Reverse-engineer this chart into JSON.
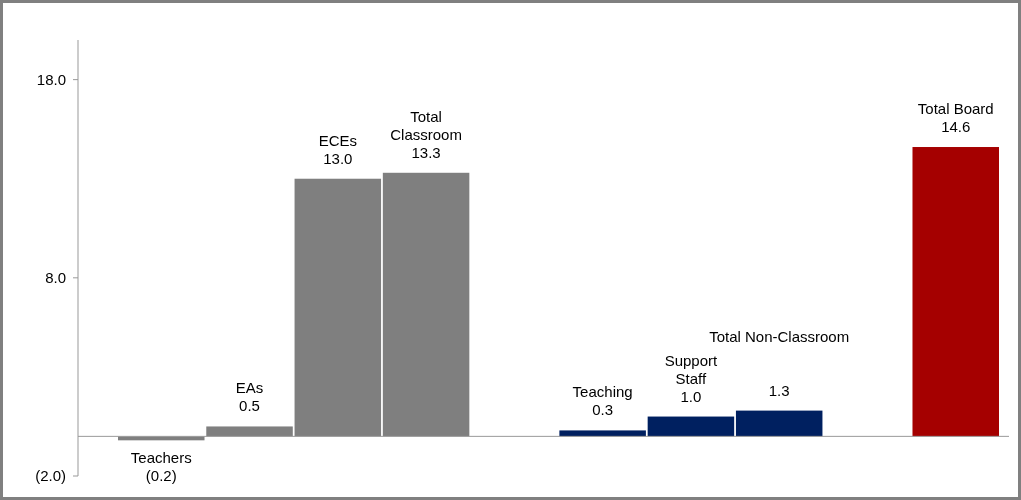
{
  "chart_data": {
    "type": "bar",
    "categories": [
      "Teachers",
      "EAs",
      "ECEs",
      "Total\nClassroom",
      null,
      "Teaching",
      "Support\nStaff",
      "Total Non-Classroom",
      null,
      "Total Board"
    ],
    "values": [
      -0.2,
      0.5,
      13.0,
      13.3,
      null,
      0.3,
      1.0,
      1.3,
      null,
      14.6
    ],
    "value_labels": [
      "(0.2)",
      "0.5",
      "13.0",
      "13.3",
      null,
      "0.3",
      "1.0",
      "1.3",
      null,
      "14.6"
    ],
    "colors": [
      "#7f7f7f",
      "#7f7f7f",
      "#7f7f7f",
      "#7f7f7f",
      null,
      "#002060",
      "#002060",
      "#002060",
      null,
      "#a50000"
    ],
    "ylim": [
      -2,
      20
    ],
    "yticks": [
      {
        "value": -2,
        "label": "(2.0)"
      },
      {
        "value": 8,
        "label": "8.0"
      },
      {
        "value": 18,
        "label": "18.0"
      }
    ],
    "grid": false
  }
}
